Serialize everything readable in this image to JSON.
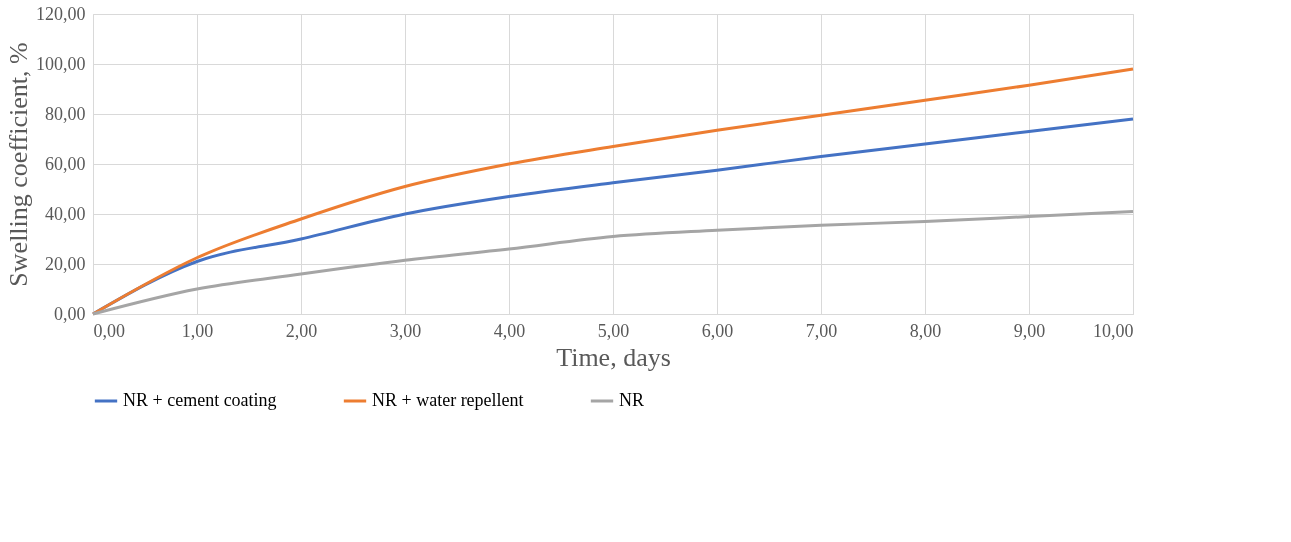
{
  "chart_data": {
    "type": "line",
    "xlabel": "Time, days",
    "ylabel": "Swelling coefficient, %",
    "x": [
      0,
      1,
      2,
      3,
      4,
      5,
      6,
      7,
      8,
      9,
      10
    ],
    "series": [
      {
        "name": "NR + cement coating",
        "color": "#4472c4",
        "values": [
          0,
          21,
          30,
          40,
          47,
          52.5,
          57.5,
          63,
          68,
          73,
          78
        ]
      },
      {
        "name": "NR + water repellent",
        "color": "#ed7d31",
        "values": [
          0,
          22.5,
          38,
          51,
          60,
          67,
          73.5,
          79.5,
          85.5,
          91.5,
          98
        ]
      },
      {
        "name": "NR",
        "color": "#a5a5a5",
        "values": [
          0,
          10,
          16,
          21.5,
          26,
          31,
          33.5,
          35.5,
          37,
          39,
          41
        ]
      }
    ],
    "xlim": [
      0,
      10
    ],
    "xticks": [
      {
        "value": 0,
        "label": "0,00"
      },
      {
        "value": 1,
        "label": "1,00"
      },
      {
        "value": 2,
        "label": "2,00"
      },
      {
        "value": 3,
        "label": "3,00"
      },
      {
        "value": 4,
        "label": "4,00"
      },
      {
        "value": 5,
        "label": "5,00"
      },
      {
        "value": 6,
        "label": "6,00"
      },
      {
        "value": 7,
        "label": "7,00"
      },
      {
        "value": 8,
        "label": "8,00"
      },
      {
        "value": 9,
        "label": "9,00"
      },
      {
        "value": 10,
        "label": "10,00"
      }
    ],
    "ylim": [
      0,
      120
    ],
    "yticks": [
      {
        "value": 0,
        "label": "0,00"
      },
      {
        "value": 20,
        "label": "20,00"
      },
      {
        "value": 40,
        "label": "40,00"
      },
      {
        "value": 60,
        "label": "60,00"
      },
      {
        "value": 80,
        "label": "80,00"
      },
      {
        "value": 100,
        "label": "100,00"
      },
      {
        "value": 120,
        "label": "120,00"
      }
    ],
    "grid": true,
    "legend": "bottom",
    "marker": "none",
    "line_style": "solid"
  }
}
